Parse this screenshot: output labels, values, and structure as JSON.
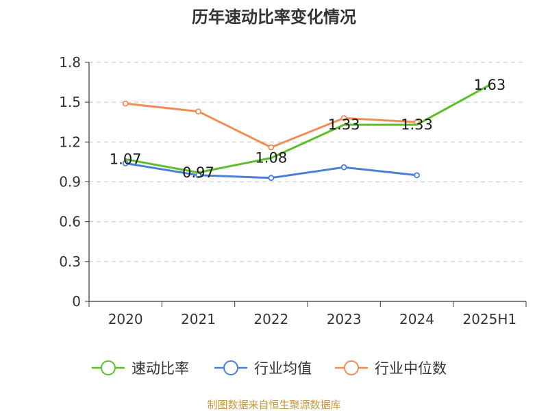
{
  "chart_data": {
    "type": "line",
    "title": "历年速动比率变化情况",
    "categories": [
      "2020",
      "2021",
      "2022",
      "2023",
      "2024",
      "2025H1"
    ],
    "ylim": [
      0,
      1.8
    ],
    "yticks": [
      "0",
      "0.3",
      "0.6",
      "0.9",
      "1.2",
      "1.5",
      "1.8"
    ],
    "grid": true,
    "legend_position": "bottom",
    "series": [
      {
        "name": "速动比率",
        "color": "#5cbf2a",
        "values": [
          1.07,
          0.97,
          1.08,
          1.33,
          1.33,
          1.63
        ],
        "labels": [
          "1.07",
          "0.97",
          "1.08",
          "1.33",
          "1.33",
          "1.63"
        ]
      },
      {
        "name": "行业均值",
        "color": "#4a7fd8",
        "values": [
          1.04,
          0.95,
          0.93,
          1.01,
          0.95,
          null
        ]
      },
      {
        "name": "行业中位数",
        "color": "#f28c55",
        "values": [
          1.49,
          1.43,
          1.16,
          1.38,
          1.35,
          null
        ]
      }
    ],
    "source": "制图数据来自恒生聚源数据库"
  }
}
